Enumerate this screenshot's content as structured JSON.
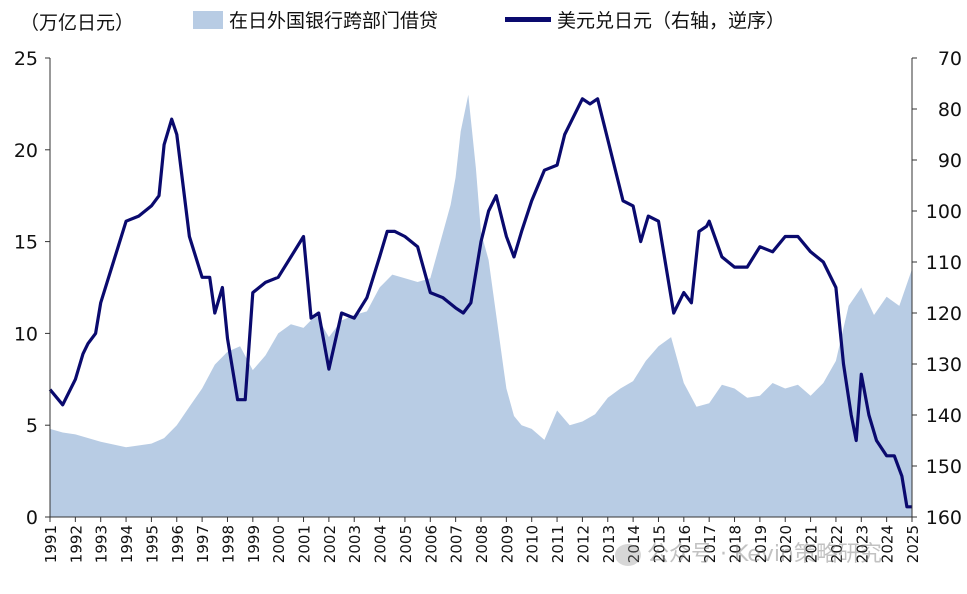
{
  "chart_data": {
    "type": "area+line",
    "title": "",
    "left_unit_label": "（万亿日元）",
    "legend": {
      "area": "在日外国银行跨部门借贷",
      "line": "美元兑日元（右轴，逆序）"
    },
    "colors": {
      "area": "#b8cce4",
      "line": "#0a0a6e",
      "axis": "#333333"
    },
    "left_axis": {
      "min": 0,
      "max": 25,
      "ticks": [
        "0",
        "5",
        "10",
        "15",
        "20",
        "25"
      ]
    },
    "right_axis": {
      "min": 70,
      "max": 160,
      "inverted": true,
      "ticks": [
        "70",
        "80",
        "90",
        "100",
        "110",
        "120",
        "130",
        "140",
        "150",
        "160"
      ]
    },
    "x_axis": {
      "min": 1991,
      "max": 2025,
      "ticks": [
        "1991",
        "1992",
        "1993",
        "1994",
        "1995",
        "1996",
        "1997",
        "1998",
        "1999",
        "2000",
        "2001",
        "2002",
        "2003",
        "2004",
        "2005",
        "2006",
        "2007",
        "2008",
        "2009",
        "2010",
        "2011",
        "2012",
        "2013",
        "2014",
        "2015",
        "2016",
        "2017",
        "2018",
        "2019",
        "2020",
        "2021",
        "2022",
        "2023",
        "2024",
        "2025"
      ]
    },
    "series": [
      {
        "name": "在日外国银行跨部门借贷",
        "axis": "left",
        "kind": "area",
        "x": [
          1991.0,
          1991.5,
          1992.0,
          1993.0,
          1994.0,
          1995.0,
          1995.5,
          1996.0,
          1996.5,
          1997.0,
          1997.5,
          1998.0,
          1998.5,
          1999.0,
          1999.5,
          2000.0,
          2000.5,
          2001.0,
          2001.5,
          2002.0,
          2002.5,
          2003.0,
          2003.5,
          2004.0,
          2004.5,
          2005.0,
          2005.5,
          2006.0,
          2006.5,
          2006.8,
          2007.0,
          2007.2,
          2007.5,
          2007.8,
          2008.0,
          2008.3,
          2008.6,
          2008.9,
          2009.0,
          2009.3,
          2009.6,
          2010.0,
          2010.5,
          2011.0,
          2011.5,
          2012.0,
          2012.5,
          2013.0,
          2013.5,
          2014.0,
          2014.5,
          2015.0,
          2015.5,
          2016.0,
          2016.5,
          2017.0,
          2017.5,
          2018.0,
          2018.5,
          2019.0,
          2019.5,
          2020.0,
          2020.5,
          2021.0,
          2021.5,
          2022.0,
          2022.5,
          2023.0,
          2023.5,
          2024.0,
          2024.5,
          2025.0
        ],
        "values": [
          4.8,
          4.6,
          4.5,
          4.1,
          3.8,
          4.0,
          4.3,
          5.0,
          6.0,
          7.0,
          8.3,
          9.0,
          9.3,
          8.0,
          8.8,
          10.0,
          10.5,
          10.3,
          11.0,
          9.8,
          10.7,
          11.0,
          11.2,
          12.5,
          13.2,
          13.0,
          12.8,
          13.0,
          15.5,
          17.0,
          18.5,
          21.0,
          23.0,
          19.0,
          15.5,
          14.0,
          11.0,
          8.0,
          7.0,
          5.5,
          5.0,
          4.8,
          4.2,
          5.8,
          5.0,
          5.2,
          5.6,
          6.5,
          7.0,
          7.4,
          8.5,
          9.3,
          9.8,
          7.3,
          6.0,
          6.2,
          7.2,
          7.0,
          6.5,
          6.6,
          7.3,
          7.0,
          7.2,
          6.6,
          7.3,
          8.5,
          11.5,
          12.5,
          11.0,
          12.0,
          11.5,
          13.5
        ]
      },
      {
        "name": "美元兑日元",
        "axis": "right",
        "kind": "line",
        "x": [
          1991.0,
          1991.5,
          1992.0,
          1992.3,
          1992.5,
          1992.8,
          1993.0,
          1993.5,
          1994.0,
          1994.5,
          1995.0,
          1995.3,
          1995.5,
          1995.8,
          1996.0,
          1996.5,
          1997.0,
          1997.3,
          1997.5,
          1997.8,
          1998.0,
          1998.4,
          1998.7,
          1999.0,
          1999.5,
          2000.0,
          2000.5,
          2001.0,
          2001.3,
          2001.6,
          2002.0,
          2002.5,
          2003.0,
          2003.5,
          2004.0,
          2004.3,
          2004.6,
          2005.0,
          2005.5,
          2006.0,
          2006.5,
          2007.0,
          2007.3,
          2007.6,
          2008.0,
          2008.3,
          2008.6,
          2008.9,
          2009.0,
          2009.3,
          2009.6,
          2010.0,
          2010.5,
          2011.0,
          2011.3,
          2011.6,
          2012.0,
          2012.3,
          2012.6,
          2013.0,
          2013.3,
          2013.6,
          2014.0,
          2014.3,
          2014.6,
          2015.0,
          2015.3,
          2015.6,
          2016.0,
          2016.3,
          2016.6,
          2016.9,
          2017.0,
          2017.5,
          2018.0,
          2018.5,
          2019.0,
          2019.5,
          2020.0,
          2020.5,
          2021.0,
          2021.5,
          2022.0,
          2022.3,
          2022.6,
          2022.8,
          2023.0,
          2023.3,
          2023.6,
          2024.0,
          2024.3,
          2024.6,
          2024.8,
          2025.0
        ],
        "values": [
          135,
          138,
          133,
          128,
          126,
          124,
          118,
          110,
          102,
          101,
          99,
          97,
          87,
          82,
          85,
          105,
          113,
          113,
          120,
          115,
          125,
          137,
          137,
          116,
          114,
          113,
          109,
          105,
          121,
          120,
          131,
          120,
          121,
          117,
          109,
          104,
          104,
          105,
          107,
          116,
          117,
          119,
          120,
          118,
          106,
          100,
          97,
          103,
          105,
          109,
          104,
          98,
          92,
          91,
          85,
          82,
          78,
          79,
          78,
          86,
          92,
          98,
          99,
          106,
          101,
          102,
          111,
          120,
          116,
          118,
          104,
          103,
          102,
          109,
          111,
          111,
          107,
          108,
          105,
          105,
          108,
          110,
          115,
          130,
          140,
          145,
          132,
          140,
          145,
          148,
          148,
          152,
          158,
          158
        ]
      }
    ],
    "watermark": "公众号 · Kevin策略研究"
  }
}
